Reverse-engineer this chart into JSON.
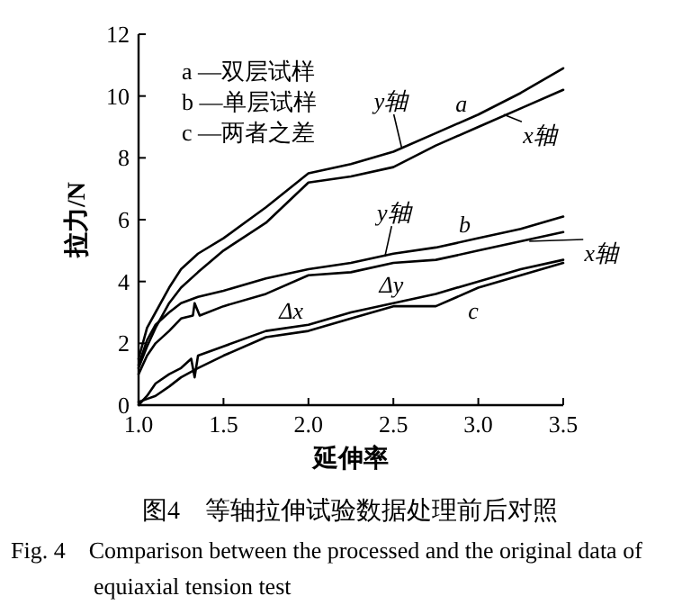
{
  "chart_data": {
    "type": "line",
    "xlabel": "延伸率",
    "ylabel": "拉力/N",
    "xlim": [
      1.0,
      3.5
    ],
    "xticks": [
      {
        "value": 1,
        "label": "1.0"
      },
      1.5,
      {
        "value": 2,
        "label": "2.0"
      },
      2.5,
      {
        "value": 3,
        "label": "3.0"
      },
      3.5
    ],
    "ylim": [
      0,
      12
    ],
    "yticks": [
      0,
      2,
      4,
      6,
      8,
      10,
      12
    ],
    "series": [
      {
        "color": "#000000",
        "x": [
          1.0,
          1.05,
          1.1,
          1.18,
          1.25,
          1.35,
          1.5,
          1.75,
          2.0,
          2.25,
          2.5,
          2.75,
          3.0,
          3.25,
          3.5
        ],
        "values": [
          1.5,
          2.5,
          3.0,
          3.8,
          4.4,
          4.9,
          5.4,
          6.4,
          7.5,
          7.8,
          8.2,
          8.8,
          9.4,
          10.1,
          10.9
        ]
      },
      {
        "color": "#000000",
        "x": [
          1.0,
          1.05,
          1.1,
          1.18,
          1.25,
          1.35,
          1.5,
          1.75,
          2.0,
          2.25,
          2.5,
          2.75,
          3.0,
          3.25,
          3.5
        ],
        "values": [
          1.2,
          1.9,
          2.5,
          3.3,
          3.8,
          4.3,
          5.0,
          5.9,
          7.2,
          7.4,
          7.7,
          8.4,
          9.0,
          9.6,
          10.2
        ]
      },
      {
        "color": "#000000",
        "x": [
          1.0,
          1.05,
          1.1,
          1.18,
          1.25,
          1.35,
          1.5,
          1.75,
          2.0,
          2.25,
          2.5,
          2.75,
          3.0,
          3.25,
          3.5
        ],
        "values": [
          1.3,
          2.1,
          2.6,
          3.0,
          3.3,
          3.5,
          3.7,
          4.1,
          4.4,
          4.6,
          4.9,
          5.1,
          5.4,
          5.7,
          6.1
        ]
      },
      {
        "color": "#000000",
        "x": [
          1.0,
          1.05,
          1.1,
          1.18,
          1.25,
          1.32,
          1.33,
          1.36,
          1.5,
          1.75,
          2.0,
          2.25,
          2.5,
          2.75,
          3.0,
          3.25,
          3.5
        ],
        "values": [
          1.0,
          1.6,
          2.0,
          2.4,
          2.8,
          2.9,
          3.3,
          2.9,
          3.2,
          3.6,
          4.2,
          4.3,
          4.6,
          4.7,
          5.0,
          5.3,
          5.6
        ]
      },
      {
        "color": "#000000",
        "x": [
          1.0,
          1.05,
          1.1,
          1.18,
          1.25,
          1.31,
          1.33,
          1.35,
          1.5,
          1.75,
          2.0,
          2.25,
          2.5,
          2.75,
          3.0,
          3.25,
          3.5
        ],
        "values": [
          0.0,
          0.3,
          0.7,
          1.0,
          1.2,
          1.5,
          0.9,
          1.6,
          1.9,
          2.4,
          2.6,
          3.0,
          3.3,
          3.6,
          4.0,
          4.4,
          4.7
        ]
      },
      {
        "color": "#000000",
        "x": [
          1.0,
          1.05,
          1.1,
          1.18,
          1.25,
          1.35,
          1.5,
          1.75,
          2.0,
          2.25,
          2.5,
          2.75,
          3.0,
          3.25,
          3.5
        ],
        "values": [
          0.1,
          0.2,
          0.3,
          0.6,
          0.9,
          1.2,
          1.6,
          2.2,
          2.4,
          2.8,
          3.2,
          3.2,
          3.8,
          4.2,
          4.6
        ]
      }
    ],
    "annotations": [
      "a —双层试样",
      "b —单层试样",
      "c —两者之差",
      {
        "text": "y轴",
        "x": 2.55,
        "y": 8.3
      },
      {
        "text": "a",
        "x": 2.9,
        "y": 9.2
      },
      {
        "text": "x轴",
        "x": 3.15,
        "y": 9.4
      },
      {
        "text": "y轴",
        "x": 2.45,
        "y": 4.8
      },
      {
        "text": "b",
        "x": 2.92,
        "y": 5.3
      },
      {
        "text": "x轴",
        "x": 3.3,
        "y": 5.3
      },
      {
        "text": "c",
        "x": 2.97,
        "y": 3.95
      },
      {
        "text": "Δx",
        "x": 1.75,
        "y": 3.6
      },
      {
        "text": "Δy",
        "x": 2.35,
        "y": 4.7
      },
      "图4　等轴拉伸试验数据处理前后对照",
      "Fig. 4　Comparison between the processed and the original data of equiaxial tension test"
    ]
  }
}
